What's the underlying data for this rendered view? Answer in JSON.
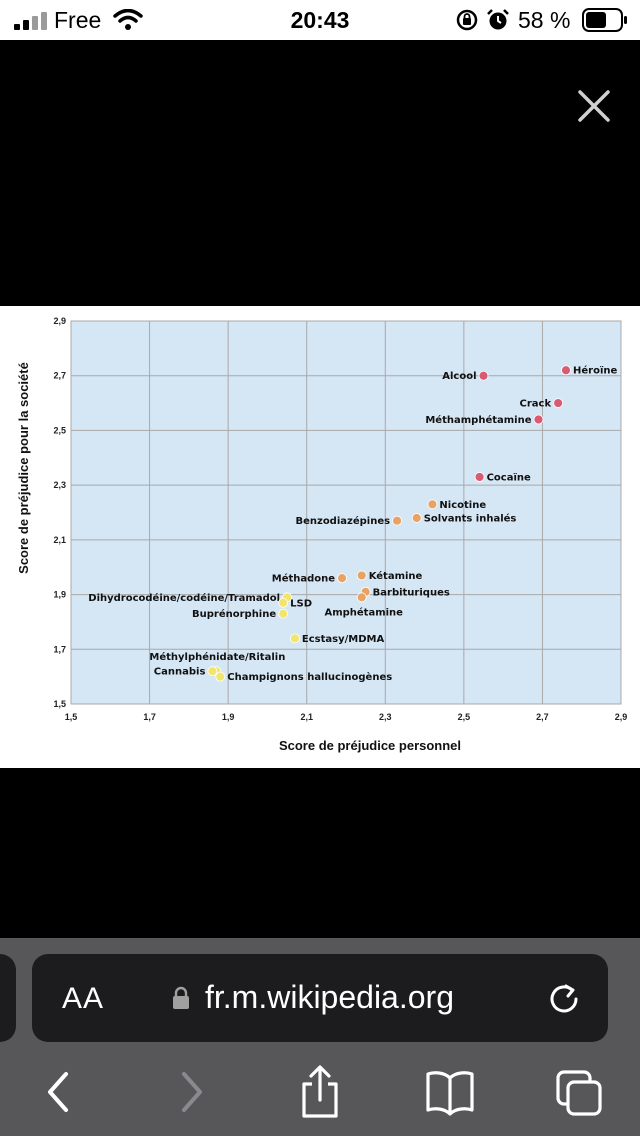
{
  "status_bar": {
    "carrier": "Free",
    "time": "20:43",
    "battery": "58 %"
  },
  "browser": {
    "text_size_label": "AA",
    "url": "fr.m.wikipedia.org"
  },
  "icons": [
    "signal-icon",
    "wifi-icon",
    "orientation-lock-icon",
    "alarm-icon",
    "battery-icon",
    "close-icon",
    "lock-icon",
    "reload-icon",
    "back-icon",
    "forward-icon",
    "share-icon",
    "bookmarks-icon",
    "tabs-icon"
  ],
  "chart_data": {
    "type": "scatter",
    "xlabel": "Score de préjudice personnel",
    "ylabel": "Score de préjudice pour la société",
    "xlim": [
      1.5,
      2.9
    ],
    "ylim": [
      1.5,
      2.9
    ],
    "x_ticks": [
      "1,5",
      "1,7",
      "1,9",
      "2,1",
      "2,3",
      "2,5",
      "2,7",
      "2,9"
    ],
    "y_ticks": [
      "1,5",
      "1,7",
      "1,9",
      "2,1",
      "2,3",
      "2,5",
      "2,7",
      "2,9"
    ],
    "grid": true,
    "colors": {
      "red": "#d95b72",
      "orange": "#e8a263",
      "yellow": "#f3e46a",
      "plot_bg": "#d5e6f4",
      "grid": "#a9a9a9"
    },
    "points": [
      {
        "label": "Héroïne",
        "x": 2.76,
        "y": 2.72,
        "color": "red",
        "pos": "right"
      },
      {
        "label": "Alcool",
        "x": 2.55,
        "y": 2.7,
        "color": "red",
        "pos": "left"
      },
      {
        "label": "Crack",
        "x": 2.74,
        "y": 2.6,
        "color": "red",
        "pos": "left"
      },
      {
        "label": "Méthamphétamine",
        "x": 2.69,
        "y": 2.54,
        "color": "red",
        "pos": "left"
      },
      {
        "label": "Cocaïne",
        "x": 2.54,
        "y": 2.33,
        "color": "red",
        "pos": "right"
      },
      {
        "label": "Nicotine",
        "x": 2.42,
        "y": 2.23,
        "color": "orange",
        "pos": "right"
      },
      {
        "label": "Solvants inhalés",
        "x": 2.38,
        "y": 2.18,
        "color": "orange",
        "pos": "right"
      },
      {
        "label": "Benzodiazépines",
        "x": 2.33,
        "y": 2.17,
        "color": "orange",
        "pos": "left"
      },
      {
        "label": "Kétamine",
        "x": 2.24,
        "y": 1.97,
        "color": "orange",
        "pos": "right"
      },
      {
        "label": "Méthadone",
        "x": 2.19,
        "y": 1.96,
        "color": "orange",
        "pos": "left"
      },
      {
        "label": "Barbituriques",
        "x": 2.25,
        "y": 1.91,
        "color": "orange",
        "pos": "right"
      },
      {
        "label": "Amphétamine",
        "x": 2.24,
        "y": 1.89,
        "color": "orange",
        "pos": "below"
      },
      {
        "label": "Dihydrocodéine/codéine/Tramadol",
        "x": 2.05,
        "y": 1.89,
        "color": "yellow",
        "pos": "left"
      },
      {
        "label": "LSD",
        "x": 2.04,
        "y": 1.87,
        "color": "yellow",
        "pos": "right"
      },
      {
        "label": "Buprénorphine",
        "x": 2.04,
        "y": 1.83,
        "color": "yellow",
        "pos": "left"
      },
      {
        "label": "Ecstasy/MDMA",
        "x": 2.07,
        "y": 1.74,
        "color": "yellow",
        "pos": "right"
      },
      {
        "label": "Méthylphénidate/Ritalin",
        "x": 1.87,
        "y": 1.62,
        "color": "yellow",
        "pos": "above"
      },
      {
        "label": "Cannabis",
        "x": 1.86,
        "y": 1.62,
        "color": "yellow",
        "pos": "left"
      },
      {
        "label": "Champignons hallucinogènes",
        "x": 1.88,
        "y": 1.6,
        "color": "yellow",
        "pos": "right"
      }
    ]
  }
}
